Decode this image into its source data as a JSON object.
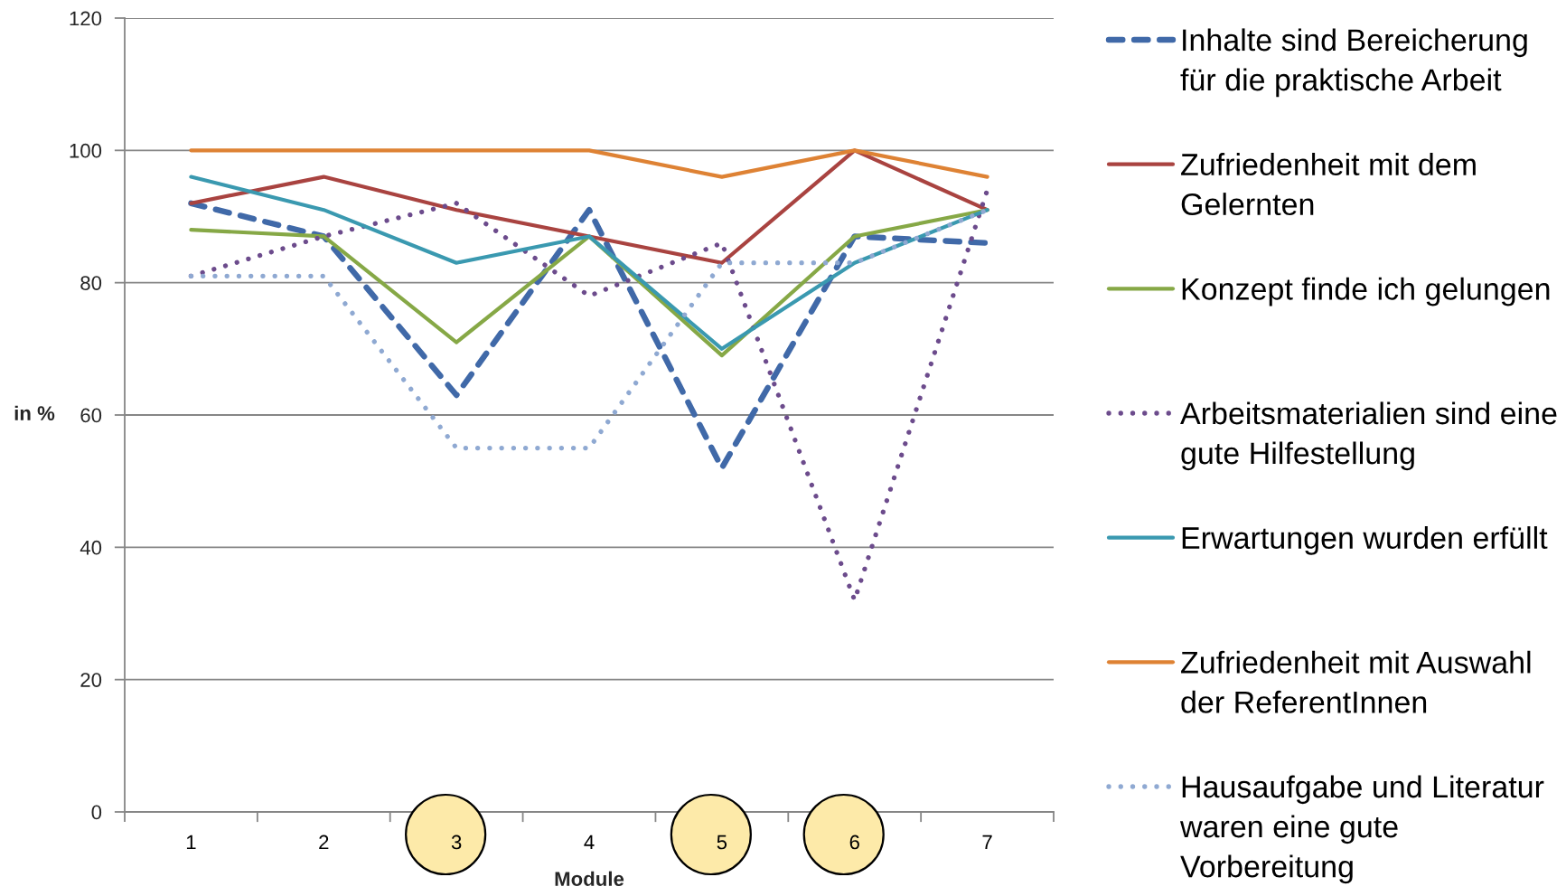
{
  "chart_data": {
    "type": "line",
    "xlabel": "Module",
    "ylabel": "in %",
    "categories": [
      "1",
      "2",
      "3",
      "4",
      "5",
      "6",
      "7"
    ],
    "ylim": [
      0,
      120
    ],
    "yticks": [
      0,
      20,
      40,
      60,
      80,
      100,
      120
    ],
    "grid": "y",
    "legend": "right",
    "series": [
      {
        "name": "Inhalte sind Bereicherung für die praktische Arbeit",
        "color": "#4069a8",
        "line_style": "dashed",
        "values": [
          92,
          87,
          63,
          91,
          52,
          87,
          86
        ]
      },
      {
        "name": "Zufriedenheit mit dem Gelernten",
        "color": "#a94340",
        "line_style": "solid",
        "values": [
          92,
          96,
          91,
          87,
          83,
          100,
          91
        ]
      },
      {
        "name": "Konzept finde ich gelungen",
        "color": "#86a846",
        "line_style": "solid",
        "values": [
          88,
          87,
          71,
          87,
          69,
          87,
          91
        ]
      },
      {
        "name": "Arbeitsmaterialien sind eine gute Hilfestellung",
        "color": "#6c4b8c",
        "line_style": "dotted",
        "values": [
          81,
          87,
          92,
          78,
          86,
          32,
          94
        ]
      },
      {
        "name": "Erwartungen wurden erfüllt",
        "color": "#3a99b0",
        "line_style": "solid",
        "values": [
          96,
          91,
          83,
          87,
          70,
          83,
          91
        ]
      },
      {
        "name": "Zufriedenheit mit Auswahl der ReferentInnen",
        "color": "#de8234",
        "line_style": "solid",
        "values": [
          100,
          100,
          100,
          100,
          96,
          100,
          96
        ]
      },
      {
        "name": "Hausaufgabe und Literatur waren eine gute Vorbereitung",
        "color": "#8fa9d2",
        "line_style": "dotted",
        "values": [
          81,
          81,
          55,
          55,
          83,
          83,
          91
        ]
      }
    ]
  }
}
